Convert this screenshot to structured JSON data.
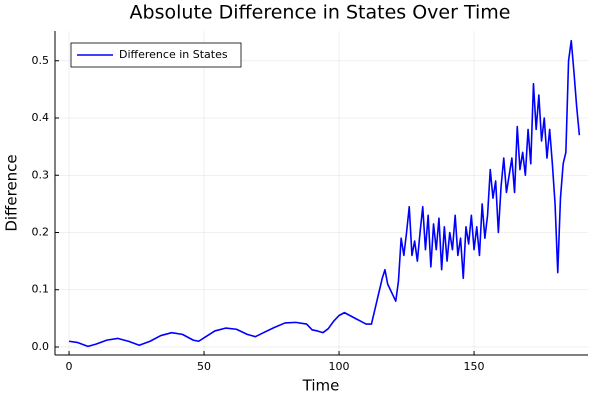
{
  "chart_data": {
    "type": "line",
    "title": "Absolute Difference in States Over Time",
    "x_label": "Time",
    "y_label": "Difference",
    "x": [
      0,
      3,
      7,
      10,
      14,
      18,
      22,
      26,
      30,
      34,
      38,
      42,
      46,
      48,
      50,
      54,
      58,
      62,
      66,
      69,
      72,
      76,
      80,
      84,
      88,
      90,
      92,
      94,
      96,
      98,
      100,
      102,
      104,
      106,
      108,
      110,
      112,
      114,
      116,
      117,
      118,
      119,
      120,
      121,
      122,
      123,
      124,
      125,
      126,
      127,
      128,
      129,
      130,
      131,
      132,
      133,
      134,
      135,
      136,
      137,
      138,
      139,
      140,
      141,
      142,
      143,
      144,
      145,
      146,
      147,
      148,
      149,
      150,
      151,
      152,
      153,
      154,
      155,
      156,
      157,
      158,
      159,
      160,
      161,
      162,
      163,
      164,
      165,
      166,
      167,
      168,
      169,
      170,
      171,
      172,
      173,
      174,
      175,
      176,
      177,
      178,
      179,
      180,
      181,
      182,
      183,
      184,
      185,
      186,
      187,
      188,
      189
    ],
    "series": [
      {
        "name": "Difference in States",
        "color": "#0000ff",
        "values": [
          0.01,
          0.008,
          0.001,
          0.005,
          0.012,
          0.015,
          0.01,
          0.003,
          0.01,
          0.02,
          0.025,
          0.022,
          0.012,
          0.01,
          0.016,
          0.028,
          0.033,
          0.031,
          0.022,
          0.018,
          0.025,
          0.034,
          0.042,
          0.043,
          0.04,
          0.03,
          0.028,
          0.025,
          0.032,
          0.045,
          0.055,
          0.06,
          0.055,
          0.05,
          0.045,
          0.04,
          0.04,
          0.08,
          0.12,
          0.135,
          0.11,
          0.1,
          0.09,
          0.08,
          0.115,
          0.19,
          0.16,
          0.2,
          0.245,
          0.16,
          0.185,
          0.15,
          0.2,
          0.245,
          0.17,
          0.23,
          0.14,
          0.215,
          0.17,
          0.225,
          0.135,
          0.21,
          0.15,
          0.2,
          0.17,
          0.23,
          0.16,
          0.19,
          0.12,
          0.21,
          0.18,
          0.23,
          0.17,
          0.21,
          0.16,
          0.25,
          0.19,
          0.23,
          0.31,
          0.26,
          0.29,
          0.2,
          0.28,
          0.33,
          0.27,
          0.3,
          0.33,
          0.27,
          0.385,
          0.31,
          0.34,
          0.3,
          0.38,
          0.32,
          0.46,
          0.38,
          0.44,
          0.36,
          0.4,
          0.33,
          0.38,
          0.32,
          0.25,
          0.13,
          0.26,
          0.32,
          0.34,
          0.5,
          0.535,
          0.48,
          0.42,
          0.37
        ]
      }
    ],
    "xlim": [
      -5.2,
      192.2
    ],
    "xticks": [
      0,
      50,
      100,
      150
    ],
    "ylim": [
      -0.014,
      0.552
    ],
    "yticks": [
      {
        "value": 0,
        "label": "0.0"
      },
      0.1,
      0.2,
      0.3,
      0.4,
      0.5
    ],
    "grid": true,
    "legend": "top-left"
  }
}
